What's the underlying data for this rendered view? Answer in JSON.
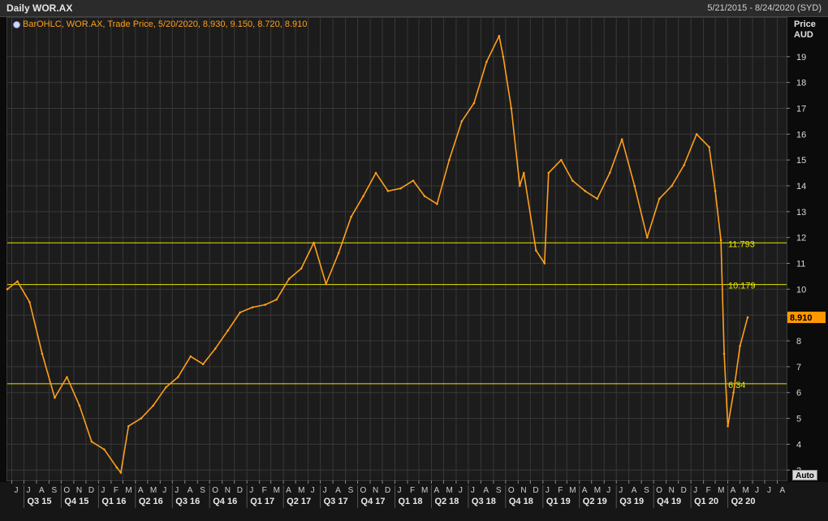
{
  "header": {
    "title": "Daily WOR.AX",
    "date_range": "5/21/2015 - 8/24/2020 (SYD)"
  },
  "legend": {
    "text": "BarOHLC, WOR.AX, Trade Price, 5/20/2020, 8.930, 9.150, 8.720, 8.910",
    "icon": "series-settings-icon"
  },
  "yaxis": {
    "title_line1": "Price",
    "title_line2": "AUD",
    "auto_label": "Auto"
  },
  "colors": {
    "price_line": "#ff9f1c",
    "hline": "#e6e600",
    "last_price_bg": "#ff9900",
    "grid": "#383838"
  },
  "chart_data": {
    "type": "line",
    "series": [
      {
        "name": "WOR.AX",
        "x": [
          "2015-05-21",
          "2015-06-15",
          "2015-07-15",
          "2015-08-15",
          "2015-09-15",
          "2015-10-15",
          "2015-11-15",
          "2015-12-15",
          "2016-01-15",
          "2016-02-15",
          "2016-02-25",
          "2016-03-15",
          "2016-04-15",
          "2016-05-15",
          "2016-06-15",
          "2016-07-15",
          "2016-08-15",
          "2016-09-15",
          "2016-10-15",
          "2016-11-15",
          "2016-12-15",
          "2017-01-15",
          "2017-02-15",
          "2017-03-15",
          "2017-04-15",
          "2017-05-15",
          "2017-06-15",
          "2017-07-15",
          "2017-08-15",
          "2017-09-15",
          "2017-10-15",
          "2017-11-15",
          "2017-12-15",
          "2018-01-15",
          "2018-02-15",
          "2018-03-15",
          "2018-04-15",
          "2018-05-15",
          "2018-06-15",
          "2018-07-15",
          "2018-08-15",
          "2018-09-15",
          "2018-09-25",
          "2018-10-15",
          "2018-11-05",
          "2018-11-15",
          "2018-12-15",
          "2019-01-05",
          "2019-01-15",
          "2019-02-15",
          "2019-03-15",
          "2019-04-15",
          "2019-05-15",
          "2019-06-15",
          "2019-07-15",
          "2019-08-15",
          "2019-09-15",
          "2019-10-15",
          "2019-11-15",
          "2019-12-15",
          "2020-01-15",
          "2020-02-15",
          "2020-03-01",
          "2020-03-15",
          "2020-03-23",
          "2020-04-01",
          "2020-04-15",
          "2020-05-01",
          "2020-05-20"
        ],
        "values": [
          10.0,
          10.3,
          9.5,
          7.5,
          5.8,
          6.6,
          5.5,
          4.1,
          3.8,
          3.1,
          2.9,
          4.7,
          5.0,
          5.5,
          6.2,
          6.6,
          7.4,
          7.1,
          7.7,
          8.4,
          9.1,
          9.3,
          9.4,
          9.6,
          10.4,
          10.8,
          11.8,
          10.2,
          11.4,
          12.8,
          13.6,
          14.5,
          13.8,
          13.9,
          14.2,
          13.6,
          13.3,
          15.0,
          16.5,
          17.2,
          18.8,
          19.8,
          19.0,
          17.0,
          14.0,
          14.5,
          11.5,
          11.0,
          14.5,
          15.0,
          14.2,
          13.8,
          13.5,
          14.5,
          15.8,
          14.0,
          12.0,
          13.5,
          14.0,
          14.8,
          16.0,
          15.5,
          13.8,
          11.9,
          7.5,
          4.7,
          6.0,
          7.8,
          8.91
        ]
      }
    ],
    "reference_lines": [
      {
        "value": 11.793,
        "label": "11.793"
      },
      {
        "value": 10.179,
        "label": "10.179"
      },
      {
        "value": 6.34,
        "label": "6.34"
      }
    ],
    "last_price": {
      "value": 8.91,
      "label": "8.910"
    },
    "ylim": [
      2.6,
      20.5
    ],
    "yticks": [
      3,
      4,
      5,
      6,
      7,
      8,
      9,
      10,
      11,
      12,
      13,
      14,
      15,
      16,
      17,
      18,
      19
    ],
    "xlim": [
      "2015-05-21",
      "2020-08-24"
    ],
    "month_labels": [
      "J",
      "J",
      "A",
      "S",
      "O",
      "N",
      "D",
      "J",
      "F",
      "M",
      "A",
      "M",
      "J",
      "J",
      "A",
      "S",
      "O",
      "N",
      "D",
      "J",
      "F",
      "M",
      "A",
      "M",
      "J",
      "J",
      "A",
      "S",
      "O",
      "N",
      "D",
      "J",
      "F",
      "M",
      "A",
      "M",
      "J",
      "J",
      "A",
      "S",
      "O",
      "N",
      "D",
      "J",
      "F",
      "M",
      "A",
      "M",
      "J",
      "J",
      "A",
      "S",
      "O",
      "N",
      "D",
      "J",
      "F",
      "M",
      "A",
      "M",
      "J",
      "J",
      "A"
    ],
    "quarter_labels": [
      "Q3 15",
      "Q4 15",
      "Q1 16",
      "Q2 16",
      "Q3 16",
      "Q4 16",
      "Q1 17",
      "Q2 17",
      "Q3 17",
      "Q4 17",
      "Q1 18",
      "Q2 18",
      "Q3 18",
      "Q4 18",
      "Q1 19",
      "Q2 19",
      "Q3 19",
      "Q4 19",
      "Q1 20",
      "Q2 20"
    ],
    "grid": true,
    "legend_position": "top-left"
  }
}
